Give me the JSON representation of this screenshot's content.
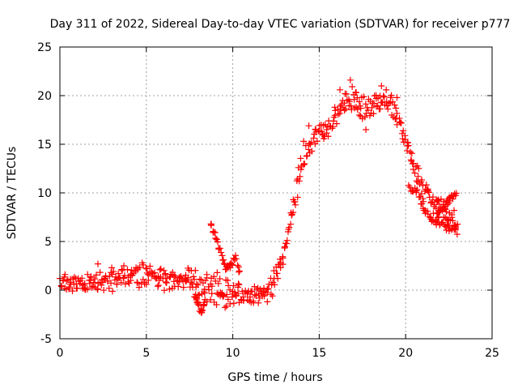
{
  "chart_data": {
    "type": "scatter",
    "title": "Day 311 of 2022, Sidereal Day-to-day VTEC variation (SDTVAR) for receiver p777",
    "xlabel": "GPS time / hours",
    "ylabel": "SDTVAR / TECUs",
    "xlim": [
      0,
      25
    ],
    "ylim": [
      -5,
      25
    ],
    "xticks": [
      0,
      5,
      10,
      15,
      20,
      25
    ],
    "yticks": [
      -5,
      0,
      5,
      10,
      15,
      20,
      25
    ],
    "xtick_labels": [
      "0",
      "5",
      "10",
      "15",
      "20",
      "25"
    ],
    "ytick_labels": [
      "-5",
      "0",
      "5",
      "10",
      "15",
      "20",
      "25"
    ],
    "grid": true,
    "marker": "+",
    "series": [
      {
        "name": "SDTVAR",
        "color": "#ff0000",
        "points": [
          [
            0.0,
            1.2
          ],
          [
            0.3,
            1.6
          ],
          [
            0.6,
            0.6
          ],
          [
            1.0,
            0.2
          ],
          [
            1.4,
            0.5
          ],
          [
            1.8,
            1.4
          ],
          [
            2.2,
            2.7
          ],
          [
            2.6,
            1.2
          ],
          [
            3.0,
            2.3
          ],
          [
            3.3,
            0.6
          ],
          [
            3.7,
            2.5
          ],
          [
            4.1,
            1.0
          ],
          [
            4.5,
            2.1
          ],
          [
            4.9,
            0.8
          ],
          [
            5.3,
            1.9
          ],
          [
            5.7,
            0.5
          ],
          [
            6.1,
            1.7
          ],
          [
            6.5,
            0.2
          ],
          [
            6.9,
            1.3
          ],
          [
            7.3,
            0.9
          ],
          [
            7.6,
            2.0
          ],
          [
            7.9,
            -1.0
          ],
          [
            8.2,
            -2.3
          ],
          [
            8.5,
            1.6
          ],
          [
            8.8,
            0.4
          ],
          [
            9.1,
            1.8
          ],
          [
            9.4,
            -0.5
          ],
          [
            9.7,
            1.0
          ],
          [
            10.0,
            -0.4
          ],
          [
            10.3,
            0.3
          ],
          [
            10.6,
            -0.7
          ],
          [
            10.9,
            -0.2
          ],
          [
            11.2,
            -1.3
          ],
          [
            11.5,
            -0.4
          ],
          [
            11.8,
            0.2
          ],
          [
            12.0,
            -1.2
          ],
          [
            12.3,
            -0.6
          ],
          [
            12.6,
            1.2
          ],
          [
            12.9,
            3.3
          ],
          [
            13.2,
            6.0
          ],
          [
            13.5,
            9.3
          ],
          [
            13.8,
            12.6
          ],
          [
            14.1,
            15.3
          ],
          [
            14.4,
            16.9
          ],
          [
            14.8,
            16.5
          ],
          [
            15.2,
            16.0
          ],
          [
            15.5,
            16.8
          ],
          [
            15.9,
            18.8
          ],
          [
            16.2,
            20.6
          ],
          [
            16.5,
            20.2
          ],
          [
            16.8,
            21.6
          ],
          [
            17.1,
            20.3
          ],
          [
            17.4,
            18.7
          ],
          [
            17.7,
            16.5
          ],
          [
            18.0,
            18.2
          ],
          [
            18.3,
            19.7
          ],
          [
            18.6,
            21.0
          ],
          [
            18.9,
            19.4
          ],
          [
            19.2,
            18.0
          ],
          [
            19.5,
            19.8
          ],
          [
            19.8,
            16.1
          ],
          [
            20.1,
            15.2
          ],
          [
            20.4,
            13.0
          ],
          [
            20.7,
            11.1
          ],
          [
            21.0,
            9.4
          ],
          [
            21.3,
            10.2
          ],
          [
            21.6,
            7.9
          ],
          [
            21.9,
            9.3
          ],
          [
            22.2,
            7.5
          ],
          [
            22.5,
            6.6
          ],
          [
            22.8,
            8.2
          ],
          [
            22.9,
            6.5
          ]
        ],
        "bands": [
          {
            "points": [
              [
                0.0,
                1.0
              ],
              [
                1.5,
                0.4
              ],
              [
                3.0,
                1.6
              ],
              [
                4.5,
                1.2
              ],
              [
                6.0,
                0.8
              ],
              [
                7.5,
                1.4
              ],
              [
                9.0,
                0.6
              ],
              [
                10.5,
                -0.3
              ],
              [
                12.0,
                -0.5
              ],
              [
                13.0,
                3.8
              ],
              [
                14.0,
                13.5
              ],
              [
                15.0,
                16.4
              ],
              [
                16.0,
                17.8
              ],
              [
                17.0,
                20.5
              ],
              [
                18.0,
                18.5
              ],
              [
                19.0,
                20.2
              ],
              [
                20.0,
                15.0
              ],
              [
                21.0,
                10.0
              ],
              [
                22.0,
                8.5
              ],
              [
                23.0,
                7.0
              ]
            ],
            "amp": 0.9,
            "density": 260
          },
          {
            "points": [
              [
                0.0,
                0.4
              ],
              [
                1.5,
                1.0
              ],
              [
                3.0,
                0.6
              ],
              [
                4.5,
                2.2
              ],
              [
                6.0,
                1.6
              ],
              [
                7.5,
                0.6
              ],
              [
                8.5,
                -0.4
              ],
              [
                9.5,
                -1.0
              ],
              [
                10.5,
                -0.9
              ],
              [
                11.5,
                -0.8
              ],
              [
                12.5,
                0.8
              ],
              [
                13.5,
                8.5
              ],
              [
                14.5,
                15.6
              ],
              [
                15.5,
                16.5
              ],
              [
                16.5,
                19.5
              ],
              [
                17.5,
                17.6
              ],
              [
                18.5,
                20.2
              ],
              [
                19.5,
                18.4
              ],
              [
                20.5,
                12.8
              ],
              [
                21.5,
                9.6
              ],
              [
                22.5,
                7.8
              ],
              [
                23.0,
                6.4
              ]
            ],
            "amp": 0.8,
            "density": 220
          },
          {
            "points": [
              [
                8.7,
                6.8
              ],
              [
                9.0,
                5.6
              ],
              [
                9.3,
                3.8
              ],
              [
                9.6,
                2.2
              ],
              [
                9.9,
                2.6
              ],
              [
                10.2,
                3.4
              ],
              [
                10.4,
                1.6
              ]
            ],
            "amp": 0.3,
            "density": 40
          },
          {
            "points": [
              [
                7.8,
                -0.4
              ],
              [
                8.0,
                -1.5
              ],
              [
                8.2,
                -2.4
              ],
              [
                8.4,
                -1.2
              ]
            ],
            "amp": 0.3,
            "density": 20
          },
          {
            "points": [
              [
                20.2,
                10.6
              ],
              [
                20.6,
                10.3
              ],
              [
                21.0,
                8.6
              ],
              [
                21.5,
                7.2
              ],
              [
                22.0,
                6.8
              ],
              [
                22.5,
                6.4
              ],
              [
                22.9,
                6.4
              ]
            ],
            "amp": 0.35,
            "density": 50
          },
          {
            "points": [
              [
                21.8,
                7.5
              ],
              [
                22.2,
                8.4
              ],
              [
                22.6,
                9.6
              ],
              [
                22.9,
                10.0
              ]
            ],
            "amp": 0.4,
            "density": 30
          }
        ]
      }
    ]
  }
}
